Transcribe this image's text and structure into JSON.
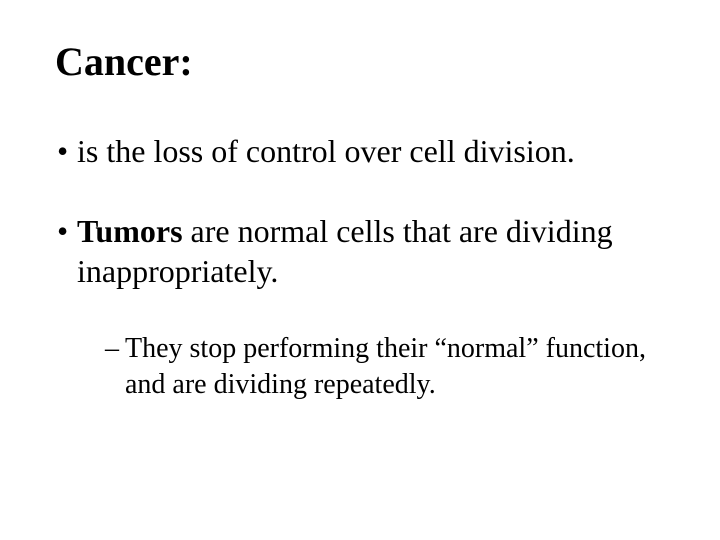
{
  "slide": {
    "title": "Cancer:",
    "title_fontsize": 40,
    "title_fontweight": "bold",
    "bullets": [
      {
        "prefix": "•",
        "text": "is the loss of control over cell division.",
        "fontsize": 32
      },
      {
        "prefix": "•",
        "bold_lead": "Tumors",
        "text_after": " are normal cells that are dividing inappropriately.",
        "fontsize": 32
      }
    ],
    "sub_bullets": [
      {
        "prefix": "–",
        "text": "They stop performing their “normal” function, and are dividing repeatedly.",
        "fontsize": 28
      }
    ],
    "colors": {
      "background": "#ffffff",
      "text": "#000000"
    },
    "font_family": "Times New Roman"
  }
}
